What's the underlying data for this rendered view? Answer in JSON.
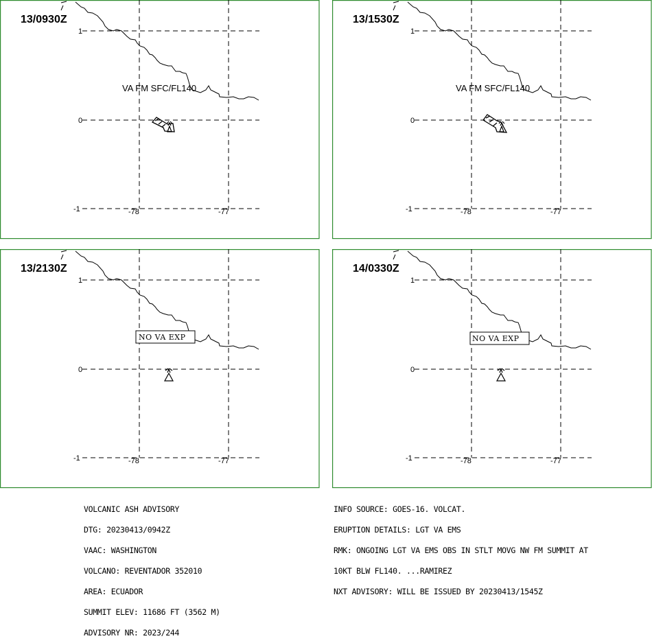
{
  "panels": [
    {
      "time": "13/0930Z",
      "label": "VA FM SFC/FL140",
      "kind": "plume",
      "ticks": {
        "lat": [
          "1",
          "0",
          "-1"
        ],
        "lon": [
          "-78",
          "-77"
        ]
      }
    },
    {
      "time": "13/1530Z",
      "label": "VA FM SFC/FL140",
      "kind": "plume",
      "ticks": {
        "lat": [
          "1",
          "0",
          "-1"
        ],
        "lon": [
          "-78",
          "-77"
        ]
      }
    },
    {
      "time": "13/2130Z",
      "label": "NO VA EXP",
      "kind": "none",
      "ticks": {
        "lat": [
          "1",
          "0",
          "-1"
        ],
        "lon": [
          "-78",
          "-77"
        ]
      }
    },
    {
      "time": "14/0330Z",
      "label": "NO VA EXP",
      "kind": "none",
      "ticks": {
        "lat": [
          "1",
          "0",
          "-1"
        ],
        "lon": [
          "-78",
          "-77"
        ]
      }
    }
  ],
  "advisory_left": [
    "VOLCANIC ASH ADVISORY",
    "DTG: 20230413/0942Z",
    "VAAC: WASHINGTON",
    "VOLCANO: REVENTADOR 352010",
    "AREA: ECUADOR",
    "SUMMIT ELEV: 11686 FT (3562 M)",
    "ADVISORY NR: 2023/244"
  ],
  "advisory_right": [
    "INFO SOURCE: GOES-16. VOLCAT.",
    "ERUPTION DETAILS: LGT VA EMS",
    "RMK: ONGOING LGT VA EMS OBS IN STLT MOVG NW FM SUMMIT AT",
    "10KT BLW FL140. ...RAMIREZ",
    "NXT ADVISORY: WILL BE ISSUED BY 20230413/1545Z"
  ],
  "colors": {
    "frame": "#2e8b2e",
    "ink": "#000000",
    "background": "#ffffff"
  }
}
